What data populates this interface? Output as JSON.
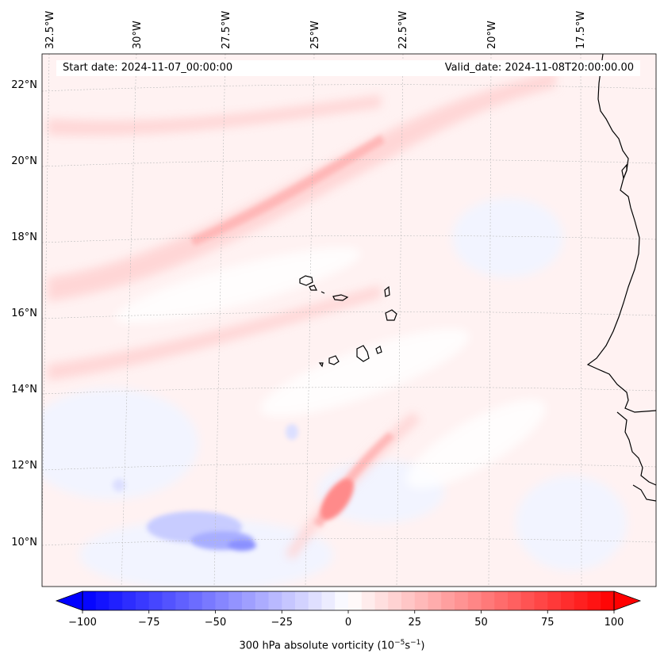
{
  "header": {
    "start_date": "Start date: 2024-11-07_00:00:00",
    "valid_date": "Valid_date: 2024-11-08T20:00:00.00"
  },
  "map": {
    "projection": "lambert-conformal",
    "lon_labels": [
      "32.5°W",
      "30°W",
      "27.5°W",
      "25°W",
      "22.5°W",
      "20°W",
      "17.5°W"
    ],
    "lat_labels": [
      "22°N",
      "20°N",
      "18°N",
      "16°N",
      "14°N",
      "12°N",
      "10°N"
    ],
    "features": [
      "Cape Verde islands",
      "West African coastline"
    ],
    "gridlines": true
  },
  "colorbar": {
    "ticks": [
      "−100",
      "−75",
      "−50",
      "−25",
      "0",
      "25",
      "50",
      "75",
      "100"
    ],
    "min": -100,
    "max": 100,
    "label_prefix": "300 hPa absolute vorticity (10",
    "label_exp1": "−5",
    "label_mid": "s",
    "label_exp2": "−1",
    "label_suffix": ")",
    "colormap": "bwr",
    "extend": "both",
    "color_low": "#0000ff",
    "color_mid": "#ffffff",
    "color_high": "#ff0000"
  }
}
